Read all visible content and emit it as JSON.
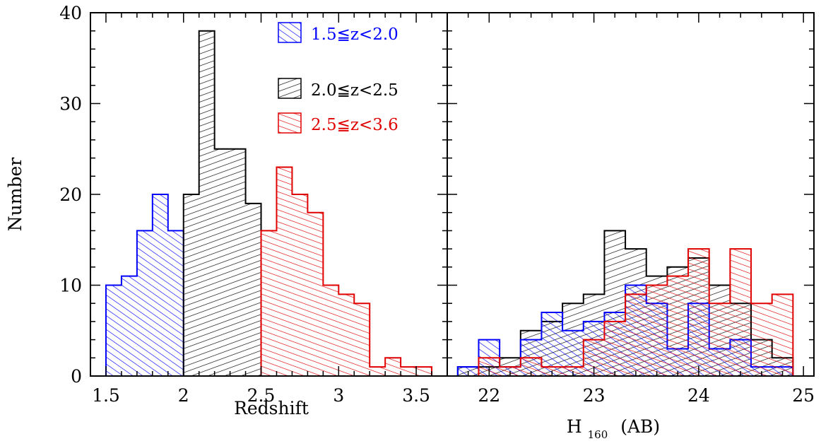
{
  "chart_data": [
    {
      "type": "histogram",
      "panel": "left",
      "xlabel": "Redshift",
      "ylabel": "Number",
      "xlim": [
        1.4,
        3.7
      ],
      "ylim": [
        0,
        40
      ],
      "xticks": [
        1.5,
        2,
        2.5,
        3,
        3.5
      ],
      "xtick_labels": [
        "1.5",
        "2",
        "2.5",
        "3",
        "3.5"
      ],
      "yticks": [
        0,
        10,
        20,
        30,
        40
      ],
      "ytick_labels": [
        "0",
        "10",
        "20",
        "30",
        "40"
      ],
      "bin_width": 0.1,
      "series": [
        {
          "name": "1.5≦z<2.0",
          "color": "#0000ff",
          "hatch": "diagonal-up",
          "bin_starts": [
            1.5,
            1.6,
            1.7,
            1.8,
            1.9
          ],
          "values": [
            10,
            11,
            16,
            20,
            16
          ]
        },
        {
          "name": "2.0≦z<2.5",
          "color": "#000000",
          "hatch": "diagonal-shallow",
          "bin_starts": [
            2.0,
            2.1,
            2.2,
            2.3,
            2.4
          ],
          "values": [
            20,
            38,
            25,
            25,
            19
          ]
        },
        {
          "name": "2.5≦z<3.6",
          "color": "#e00000",
          "hatch": "diagonal-down",
          "bin_starts": [
            2.5,
            2.6,
            2.7,
            2.8,
            2.9,
            3.0,
            3.1,
            3.2,
            3.3,
            3.4,
            3.5
          ],
          "values": [
            16,
            23,
            20,
            18,
            10,
            9,
            8,
            1,
            2,
            1,
            1
          ]
        }
      ],
      "legend": {
        "placement": "top-right"
      }
    },
    {
      "type": "histogram",
      "panel": "right",
      "xlabel": "H",
      "xlabel_subscript": "160",
      "xlabel_suffix": "(AB)",
      "xlim": [
        21.6,
        25.1
      ],
      "ylim": [
        0,
        40
      ],
      "xticks": [
        22,
        23,
        24,
        25
      ],
      "xtick_labels": [
        "22",
        "23",
        "24",
        "25"
      ],
      "bin_width": 0.2,
      "series": [
        {
          "name": "2.0≦z<2.5",
          "color": "#000000",
          "hatch": "diagonal-shallow",
          "bin_starts": [
            21.7,
            21.9,
            22.1,
            22.3,
            22.5,
            22.7,
            22.9,
            23.1,
            23.3,
            23.5,
            23.7,
            23.9,
            24.1,
            24.3,
            24.5,
            24.7
          ],
          "values": [
            1,
            1,
            2,
            5,
            6,
            8,
            9,
            16,
            14,
            11,
            12,
            13,
            10,
            8,
            4,
            2
          ]
        },
        {
          "name": "1.5≦z<2.0",
          "color": "#0000ff",
          "hatch": "diagonal-up",
          "bin_starts": [
            21.7,
            21.9,
            22.1,
            22.3,
            22.5,
            22.7,
            22.9,
            23.1,
            23.3,
            23.5,
            23.7,
            23.9,
            24.1,
            24.3,
            24.5,
            24.7
          ],
          "values": [
            1,
            4,
            1,
            4,
            7,
            5,
            6,
            7,
            10,
            8,
            3,
            8,
            3,
            4,
            1,
            1
          ]
        },
        {
          "name": "2.5≦z<3.6",
          "color": "#e00000",
          "hatch": "diagonal-down",
          "bin_starts": [
            21.9,
            22.1,
            22.3,
            22.5,
            22.7,
            22.9,
            23.1,
            23.3,
            23.5,
            23.7,
            23.9,
            24.1,
            24.3,
            24.5,
            24.7
          ],
          "values": [
            2,
            1,
            2,
            1,
            1,
            4,
            6,
            9,
            10,
            11,
            14,
            8,
            14,
            8,
            9
          ]
        }
      ]
    }
  ]
}
